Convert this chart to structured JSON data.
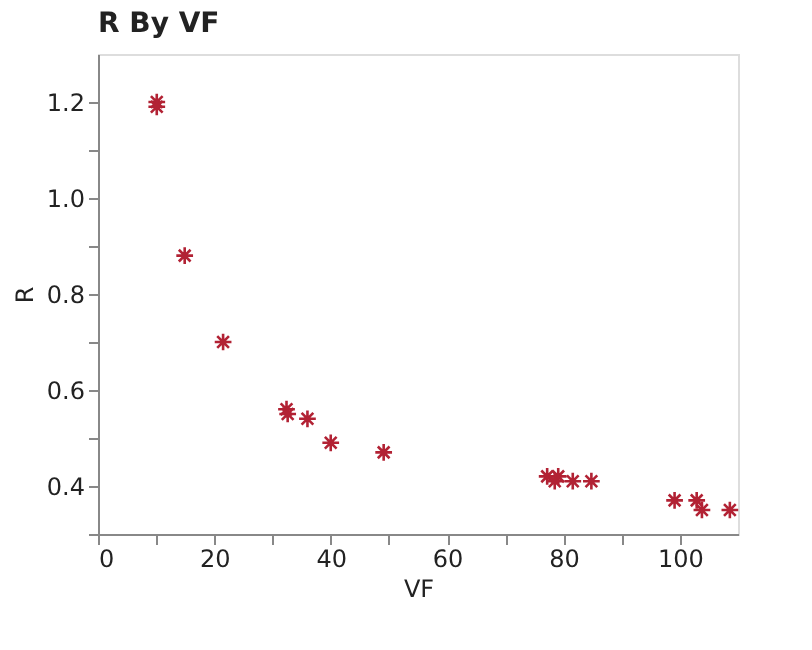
{
  "chart_data": {
    "type": "scatter",
    "title": "R By VF",
    "xlabel": "VF",
    "ylabel": "R",
    "x": [
      10.1,
      10.1,
      14.9,
      21.5,
      32.4,
      32.6,
      36.0,
      40.0,
      49.1,
      77.2,
      79.1,
      78.5,
      81.6,
      84.8,
      99.1,
      102.9,
      103.8,
      108.6
    ],
    "series": [
      {
        "color": "#b22234",
        "values": [
          1.2,
          1.19,
          0.88,
          0.7,
          0.56,
          0.55,
          0.54,
          0.49,
          0.47,
          0.42,
          0.42,
          0.41,
          0.41,
          0.41,
          0.37,
          0.37,
          0.35,
          0.35
        ]
      }
    ],
    "xlim": [
      0,
      110
    ],
    "ylim": [
      0.3,
      1.3
    ],
    "xticks": [
      0,
      {
        "value": 10,
        "label": null
      },
      20,
      {
        "value": 30,
        "label": null
      },
      40,
      {
        "value": 50,
        "label": null
      },
      60,
      {
        "value": 70,
        "label": null
      },
      80,
      {
        "value": 90,
        "label": null
      },
      100
    ],
    "yticks": [
      {
        "value": 0.3,
        "label": null
      },
      0.4,
      {
        "value": 0.5,
        "label": null
      },
      0.6,
      {
        "value": 0.7,
        "label": null
      },
      0.8,
      {
        "value": 0.9,
        "label": null
      },
      {
        "value": 1.0,
        "label": "1.0"
      },
      {
        "value": 1.1,
        "label": null
      },
      1.2
    ],
    "grid": false,
    "marker": "cross"
  }
}
